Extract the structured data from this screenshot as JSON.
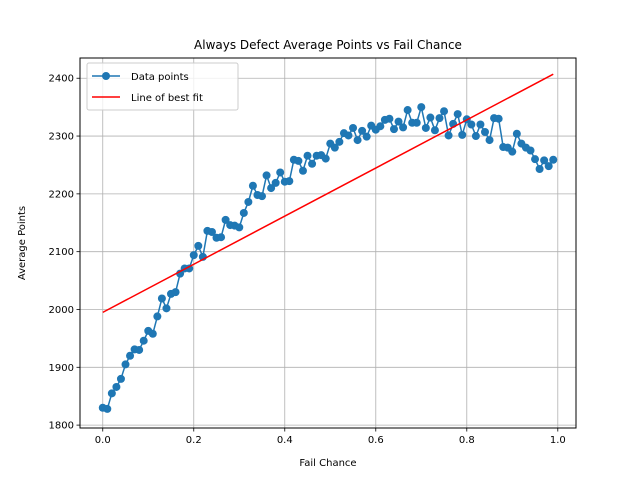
{
  "chart_data": {
    "type": "line",
    "title": "Always Defect Average Points vs Fail Chance",
    "xlabel": "Fail Chance",
    "ylabel": "Average Points",
    "xlim": [
      -0.05,
      1.04
    ],
    "ylim": [
      1795,
      2435
    ],
    "x_ticks": [
      "0.0",
      "0.2",
      "0.4",
      "0.6",
      "0.8",
      "1.0"
    ],
    "x_tick_values": [
      0.0,
      0.2,
      0.4,
      0.6,
      0.8,
      1.0
    ],
    "y_ticks": [
      "1800",
      "1900",
      "2000",
      "2100",
      "2200",
      "2300",
      "2400"
    ],
    "y_tick_values": [
      1800,
      1900,
      2000,
      2100,
      2200,
      2300,
      2400
    ],
    "grid": true,
    "legend_position": "upper-left",
    "series": [
      {
        "name": "Data points",
        "color": "#1f77b4",
        "marker": "circle",
        "x": [
          0.0,
          0.01,
          0.02,
          0.03,
          0.04,
          0.05,
          0.06,
          0.07,
          0.08,
          0.09,
          0.1,
          0.11,
          0.12,
          0.13,
          0.14,
          0.15,
          0.16,
          0.17,
          0.18,
          0.19,
          0.2,
          0.21,
          0.22,
          0.23,
          0.24,
          0.25,
          0.26,
          0.27,
          0.28,
          0.29,
          0.3,
          0.31,
          0.32,
          0.33,
          0.34,
          0.35,
          0.36,
          0.37,
          0.38,
          0.39,
          0.4,
          0.41,
          0.42,
          0.43,
          0.44,
          0.45,
          0.46,
          0.47,
          0.48,
          0.49,
          0.5,
          0.51,
          0.52,
          0.53,
          0.54,
          0.55,
          0.56,
          0.57,
          0.58,
          0.59,
          0.6,
          0.61,
          0.62,
          0.63,
          0.64,
          0.65,
          0.66,
          0.67,
          0.68,
          0.69,
          0.7,
          0.71,
          0.72,
          0.73,
          0.74,
          0.75,
          0.76,
          0.77,
          0.78,
          0.79,
          0.8,
          0.81,
          0.82,
          0.83,
          0.84,
          0.85,
          0.86,
          0.87,
          0.88,
          0.89,
          0.9,
          0.91,
          0.92,
          0.93,
          0.94,
          0.95,
          0.96,
          0.97,
          0.98,
          0.99
        ],
        "y": [
          1830,
          1828,
          1855,
          1866,
          1880,
          1905,
          1920,
          1931,
          1930,
          1946,
          1963,
          1958,
          1988,
          2019,
          2002,
          2027,
          2030,
          2062,
          2071,
          2071,
          2094,
          2110,
          2091,
          2136,
          2134,
          2124,
          2125,
          2155,
          2146,
          2145,
          2142,
          2167,
          2186,
          2214,
          2198,
          2196,
          2232,
          2210,
          2219,
          2237,
          2221,
          2222,
          2259,
          2257,
          2240,
          2266,
          2252,
          2266,
          2267,
          2261,
          2287,
          2280,
          2290,
          2305,
          2301,
          2314,
          2293,
          2309,
          2299,
          2318,
          2311,
          2317,
          2328,
          2330,
          2312,
          2325,
          2315,
          2345,
          2323,
          2323,
          2350,
          2314,
          2332,
          2310,
          2331,
          2343,
          2301,
          2321,
          2338,
          2302,
          2329,
          2320,
          2300,
          2320,
          2307,
          2293,
          2331,
          2330,
          2281,
          2280,
          2273,
          2304,
          2287,
          2280,
          2275,
          2260,
          2243,
          2258,
          2248,
          2259
        ]
      },
      {
        "name": "Line of best fit",
        "color": "#ff0000",
        "x": [
          0.0,
          0.99
        ],
        "y": [
          1995,
          2407
        ]
      }
    ]
  }
}
